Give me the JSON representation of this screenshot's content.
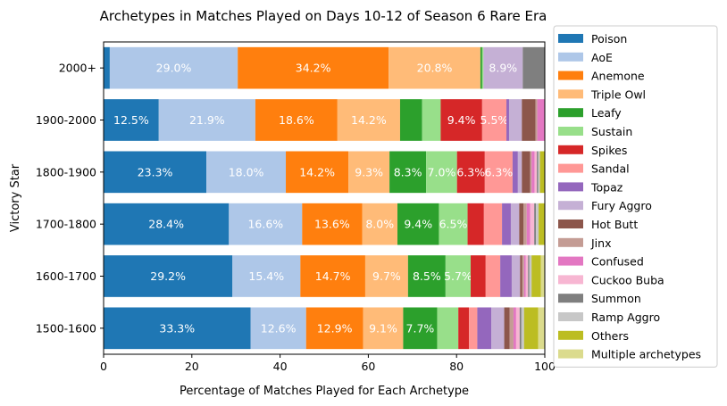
{
  "chart_data": {
    "type": "bar",
    "orientation": "horizontal",
    "stacked": true,
    "title": "Archetypes in Matches Played on Days 10-12 of Season 6 Rare Era",
    "xlabel": "Percentage of Matches Played for Each Archetype",
    "ylabel": "Victory Star",
    "xlim": [
      0,
      100
    ],
    "xticks": [
      "0",
      "20",
      "40",
      "60",
      "80",
      "100"
    ],
    "grid": false,
    "legend_position": "right",
    "categories": [
      "2000+",
      "1900-2000",
      "1800-1900",
      "1700-1800",
      "1600-1700",
      "1500-1600"
    ],
    "series": [
      {
        "name": "Poison",
        "color": "#1f77b4",
        "values": [
          1.4,
          12.5,
          23.3,
          28.4,
          29.2,
          33.3
        ],
        "labels": [
          "",
          "12.5%",
          "23.3%",
          "28.4%",
          "29.2%",
          "33.3%"
        ]
      },
      {
        "name": "AoE",
        "color": "#aec7e8",
        "values": [
          29.0,
          21.9,
          18.0,
          16.6,
          15.4,
          12.6
        ],
        "labels": [
          "29.0%",
          "21.9%",
          "18.0%",
          "16.6%",
          "15.4%",
          "12.6%"
        ]
      },
      {
        "name": "Anemone",
        "color": "#ff7f0e",
        "values": [
          34.2,
          18.6,
          14.2,
          13.6,
          14.7,
          12.9
        ],
        "labels": [
          "34.2%",
          "18.6%",
          "14.2%",
          "13.6%",
          "14.7%",
          "12.9%"
        ]
      },
      {
        "name": "Triple Owl",
        "color": "#ffbb78",
        "values": [
          20.8,
          14.2,
          9.3,
          8.0,
          9.7,
          9.1
        ],
        "labels": [
          "20.8%",
          "14.2%",
          "9.3%",
          "8.0%",
          "9.7%",
          "9.1%"
        ]
      },
      {
        "name": "Leafy",
        "color": "#2ca02c",
        "values": [
          0.4,
          5.0,
          8.3,
          9.4,
          8.5,
          7.7
        ],
        "labels": [
          "",
          "",
          "8.3%",
          "9.4%",
          "8.5%",
          "7.7%"
        ]
      },
      {
        "name": "Sustain",
        "color": "#98df8a",
        "values": [
          0.3,
          4.2,
          7.0,
          6.5,
          5.7,
          4.8
        ],
        "labels": [
          "",
          "",
          "7.0%",
          "6.5%",
          "5.7%",
          ""
        ]
      },
      {
        "name": "Spikes",
        "color": "#d62728",
        "values": [
          0,
          9.4,
          6.3,
          3.7,
          3.4,
          2.4
        ],
        "labels": [
          "",
          "9.4%",
          "6.3%",
          "",
          "",
          ""
        ]
      },
      {
        "name": "Sandal",
        "color": "#ff9896",
        "values": [
          0,
          5.5,
          6.3,
          4.1,
          3.3,
          1.9
        ],
        "labels": [
          "",
          "5.5%",
          "6.3%",
          "",
          "",
          ""
        ]
      },
      {
        "name": "Topaz",
        "color": "#9467bd",
        "values": [
          0,
          0.6,
          1.2,
          2.0,
          2.6,
          3.2
        ],
        "labels": [
          "",
          "",
          "",
          "",
          "",
          ""
        ]
      },
      {
        "name": "Fury Aggro",
        "color": "#c5b0d5",
        "values": [
          8.9,
          2.9,
          0.9,
          1.9,
          1.9,
          2.9
        ],
        "labels": [
          "8.9%",
          "",
          "",
          "",
          "",
          ""
        ]
      },
      {
        "name": "Hot Butt",
        "color": "#8c564b",
        "values": [
          0,
          3.1,
          1.9,
          1.0,
          0.5,
          1.2
        ],
        "labels": [
          "",
          "",
          "",
          "",
          "",
          ""
        ]
      },
      {
        "name": "Jinx",
        "color": "#c49c94",
        "values": [
          0,
          0.4,
          0.3,
          0.7,
          0.4,
          0.9
        ],
        "labels": [
          "",
          "",
          "",
          "",
          "",
          ""
        ]
      },
      {
        "name": "Confused",
        "color": "#e377c2",
        "values": [
          0,
          3.2,
          0.7,
          0.8,
          0.4,
          0.6
        ],
        "labels": [
          "",
          "",
          "",
          "",
          "",
          ""
        ]
      },
      {
        "name": "Cuckoo Buba",
        "color": "#f7b6d2",
        "values": [
          0,
          0.3,
          0.5,
          0.9,
          0.5,
          0.8
        ],
        "labels": [
          "",
          "",
          "",
          "",
          "",
          ""
        ]
      },
      {
        "name": "Summon",
        "color": "#7f7f7f",
        "values": [
          5.0,
          0.4,
          0.3,
          0.4,
          0.3,
          0.4
        ],
        "labels": [
          "",
          "",
          "",
          "",
          "",
          ""
        ]
      },
      {
        "name": "Ramp Aggro",
        "color": "#c7c7c7",
        "values": [
          0,
          0.3,
          0.4,
          0.6,
          0.5,
          0.6
        ],
        "labels": [
          "",
          "",
          "",
          "",
          "",
          ""
        ]
      },
      {
        "name": "Others",
        "color": "#bcbd22",
        "values": [
          0,
          1.0,
          1.1,
          1.4,
          2.1,
          3.2
        ],
        "labels": [
          "",
          "",
          "",
          "",
          "",
          ""
        ]
      },
      {
        "name": "Multiple archetypes",
        "color": "#dbdb8d",
        "values": [
          0,
          0.3,
          0.5,
          0.8,
          1.0,
          1.5
        ],
        "labels": [
          "",
          "",
          "",
          "",
          "",
          ""
        ]
      }
    ]
  }
}
